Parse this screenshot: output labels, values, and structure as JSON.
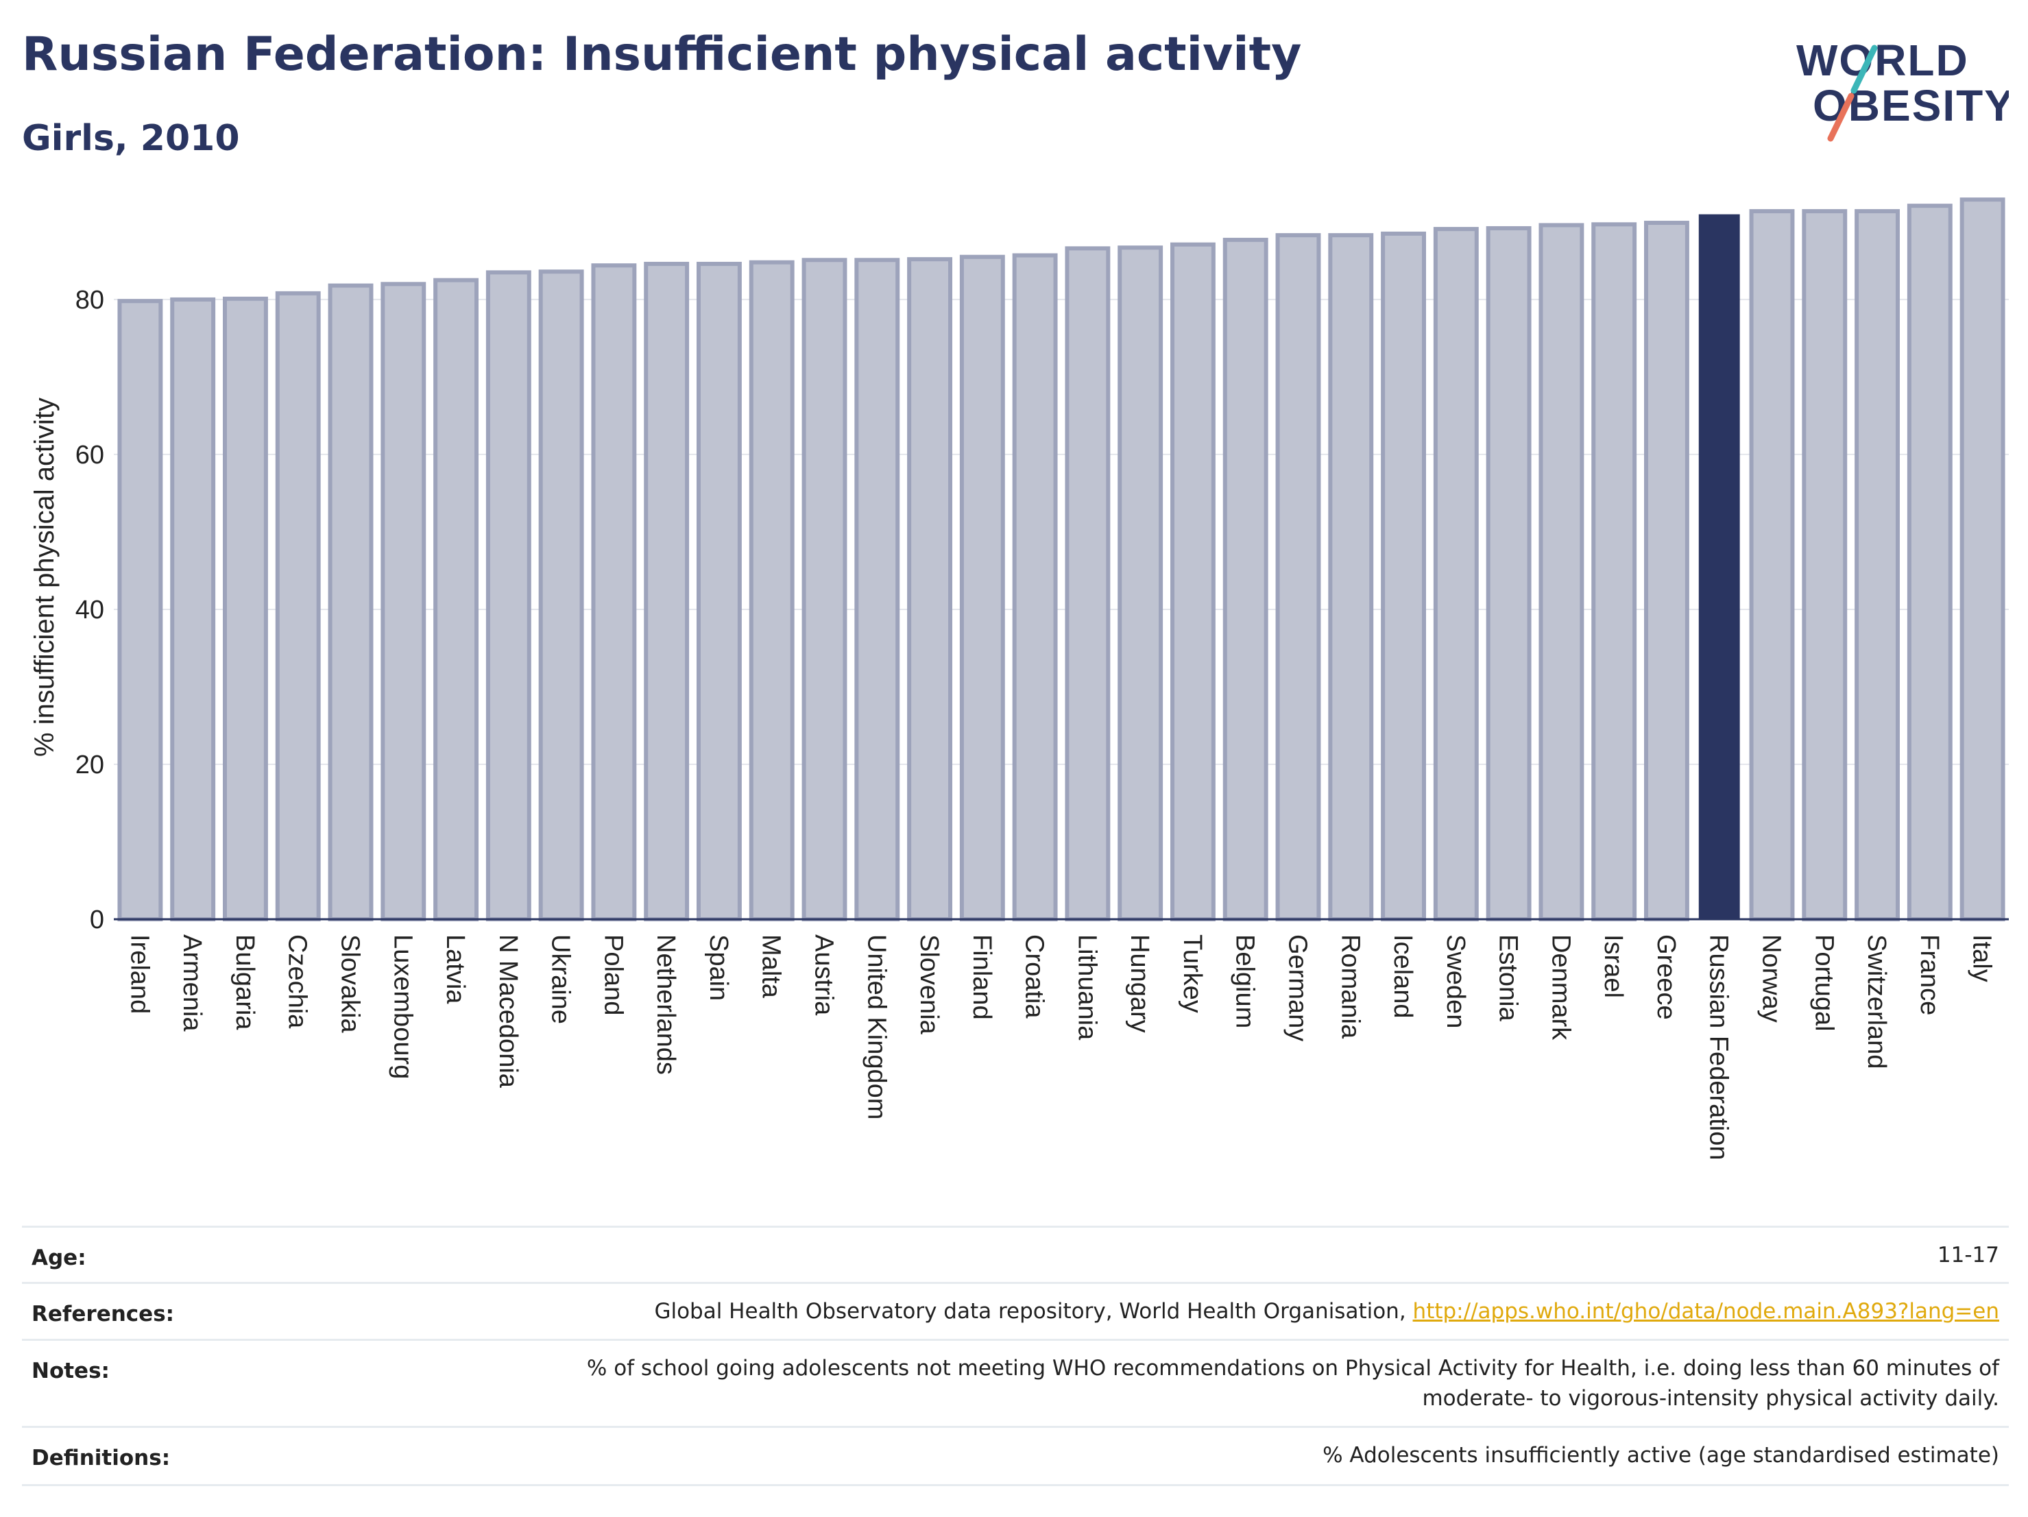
{
  "header": {
    "title": "Russian Federation: Insufficient physical activity",
    "subtitle": "Girls, 2010"
  },
  "logo": {
    "line1": "WORLD",
    "line2": "OBESITY"
  },
  "colors": {
    "title": "#2a3561",
    "highlight": "#2a3561",
    "bar_fill": "#bfc3d1",
    "bar_stroke": "#9da3bb",
    "link": "#e0a90d",
    "logo_teal": "#3cb6b8",
    "logo_coral": "#e8725a"
  },
  "chart_data": {
    "type": "bar",
    "title": "",
    "xlabel": "",
    "ylabel": "% insufficient physical activity",
    "ylim": [
      0,
      93
    ],
    "yticks": [
      0,
      20,
      40,
      60,
      80
    ],
    "grid": true,
    "highlight": "Russian Federation",
    "categories": [
      "Ireland",
      "Armenia",
      "Bulgaria",
      "Czechia",
      "Slovakia",
      "Luxembourg",
      "Latvia",
      "N Macedonia",
      "Ukraine",
      "Poland",
      "Netherlands",
      "Spain",
      "Malta",
      "Austria",
      "United Kingdom",
      "Slovenia",
      "Finland",
      "Croatia",
      "Lithuania",
      "Hungary",
      "Turkey",
      "Belgium",
      "Germany",
      "Romania",
      "Iceland",
      "Sweden",
      "Estonia",
      "Denmark",
      "Israel",
      "Greece",
      "Russian Federation",
      "Norway",
      "Portugal",
      "Switzerland",
      "France",
      "Italy"
    ],
    "values": [
      79.8,
      80.0,
      80.1,
      80.8,
      81.8,
      82.0,
      82.5,
      83.5,
      83.6,
      84.4,
      84.6,
      84.6,
      84.8,
      85.1,
      85.1,
      85.2,
      85.5,
      85.7,
      86.6,
      86.7,
      87.1,
      87.7,
      88.3,
      88.3,
      88.5,
      89.1,
      89.2,
      89.6,
      89.7,
      89.9,
      91.0,
      91.4,
      91.4,
      91.4,
      92.1,
      92.9
    ]
  },
  "details": {
    "age_label": "Age:",
    "age_value": "11-17",
    "references_label": "References:",
    "references_text": "Global Health Observatory data repository, World Health Organisation, ",
    "references_link": "http://apps.who.int/gho/data/node.main.A893?lang=en",
    "notes_label": "Notes:",
    "notes_line1": "% of school going adolescents not meeting WHO recommendations on Physical Activity for Health, i.e. doing less than 60 minutes of",
    "notes_line2": "moderate- to vigorous-intensity physical activity daily.",
    "definitions_label": "Definitions:",
    "definitions_text": "% Adolescents insufficiently active (age standardised estimate)"
  }
}
